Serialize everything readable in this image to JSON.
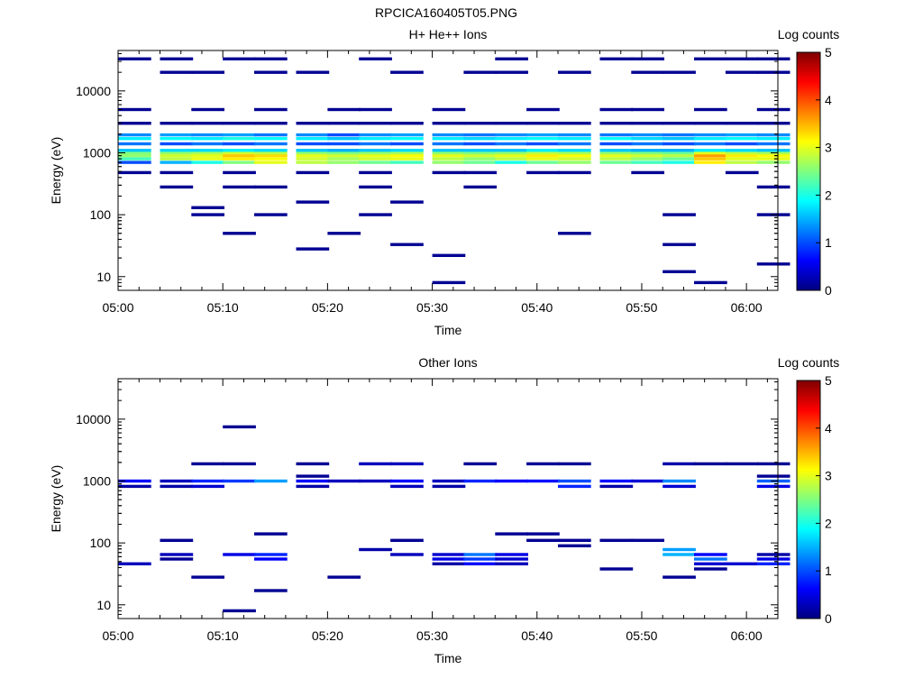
{
  "figure": {
    "title": "RPCICA160405T05.PNG"
  },
  "colorbar": {
    "colors": [
      "#00007f",
      "#0000ff",
      "#007fff",
      "#00ffff",
      "#7fff7f",
      "#ffff00",
      "#ff7f00",
      "#ff0000",
      "#7f0000"
    ],
    "ticks": [
      0,
      1,
      2,
      3,
      4,
      5
    ],
    "tick_labels": [
      "0",
      "1",
      "2",
      "3",
      "4",
      "5"
    ]
  },
  "chart_data": [
    {
      "type": "heatmap",
      "title": "H+ He++ Ions",
      "xlabel": "Time",
      "ylabel": "Energy (eV)",
      "colorbar_label": "Log counts",
      "y_scale": "log",
      "ylim": [
        6,
        45000
      ],
      "xlim": [
        "05:00",
        "06:03"
      ],
      "x_ticks": [
        "05:00",
        "05:10",
        "05:20",
        "05:30",
        "05:40",
        "05:50",
        "06:00"
      ],
      "y_ticks": [
        10,
        100,
        1000,
        10000
      ],
      "y_tick_labels": [
        "10",
        "100",
        "1000",
        "10000"
      ],
      "clim": [
        0,
        5
      ],
      "time_columns": [
        "05:00",
        "05:04",
        "05:07",
        "05:10",
        "05:13",
        "05:17",
        "05:20",
        "05:23",
        "05:26",
        "05:30",
        "05:33",
        "05:36",
        "05:39",
        "05:42",
        "05:46",
        "05:49",
        "05:52",
        "05:55",
        "05:58",
        "06:01"
      ],
      "column_width_minutes": 3.2,
      "bands": [
        {
          "e": 700,
          "values": [
            1.0,
            1.5,
            2.0,
            2.5,
            3.0,
            2.8,
            2.6,
            2.4,
            2.2,
            2.6,
            2.4,
            2.0,
            2.4,
            2.6,
            2.4,
            2.2,
            2.0,
            3.2,
            2.8,
            2.6
          ]
        },
        {
          "e": 800,
          "values": [
            2.2,
            2.8,
            3.0,
            3.2,
            3.1,
            2.9,
            2.7,
            2.9,
            3.0,
            2.8,
            2.6,
            2.8,
            3.0,
            2.9,
            2.8,
            2.6,
            2.4,
            3.4,
            3.0,
            3.0
          ]
        },
        {
          "e": 900,
          "values": [
            2.6,
            2.9,
            3.0,
            3.4,
            3.3,
            3.0,
            2.9,
            3.0,
            3.1,
            3.0,
            2.9,
            3.0,
            3.2,
            3.1,
            3.0,
            2.9,
            2.8,
            3.6,
            3.2,
            3.1
          ]
        },
        {
          "e": 1000,
          "values": [
            2.5,
            2.6,
            2.7,
            2.9,
            2.8,
            2.6,
            2.5,
            2.6,
            2.7,
            2.6,
            2.5,
            2.6,
            2.8,
            2.7,
            2.6,
            2.5,
            2.4,
            3.0,
            2.8,
            2.7
          ]
        },
        {
          "e": 1100,
          "values": [
            1.6,
            1.7,
            1.7,
            1.8,
            1.7,
            1.6,
            1.5,
            1.6,
            1.7,
            1.6,
            1.6,
            1.6,
            1.8,
            1.7,
            1.6,
            1.5,
            1.5,
            1.8,
            1.7,
            1.6
          ]
        },
        {
          "e": 1400,
          "values": [
            1.2,
            1.0,
            1.2,
            1.0,
            1.2,
            1.0,
            1.0,
            1.2,
            1.0,
            1.2,
            1.0,
            1.2,
            1.0,
            1.2,
            1.0,
            1.2,
            1.0,
            1.2,
            1.0,
            1.2
          ]
        },
        {
          "e": 1700,
          "values": [
            1.8,
            1.9,
            1.8,
            2.0,
            1.9,
            1.8,
            1.6,
            1.8,
            1.9,
            1.8,
            1.7,
            1.8,
            1.9,
            1.8,
            1.9,
            1.7,
            1.6,
            1.8,
            1.9,
            1.8
          ]
        },
        {
          "e": 1950,
          "values": [
            1.3,
            1.4,
            1.3,
            1.4,
            1.2,
            1.3,
            1.0,
            1.3,
            1.4,
            1.3,
            1.2,
            1.3,
            1.4,
            1.3,
            1.2,
            1.3,
            1.2,
            1.3,
            1.4,
            1.3
          ]
        },
        {
          "e": 16,
          "values": [
            null,
            null,
            null,
            null,
            null,
            null,
            null,
            null,
            null,
            null,
            null,
            null,
            null,
            null,
            null,
            null,
            null,
            null,
            null,
            0.1
          ]
        },
        {
          "e": 12,
          "values": [
            null,
            null,
            null,
            null,
            null,
            null,
            null,
            null,
            null,
            null,
            null,
            null,
            null,
            null,
            null,
            null,
            0.1,
            null,
            null,
            null
          ]
        },
        {
          "e": 8,
          "values": [
            null,
            null,
            null,
            null,
            null,
            null,
            null,
            null,
            null,
            0.1,
            null,
            null,
            null,
            null,
            null,
            null,
            null,
            0.1,
            null,
            null
          ]
        },
        {
          "e": 22,
          "values": [
            null,
            null,
            null,
            null,
            null,
            null,
            null,
            null,
            null,
            0.1,
            null,
            null,
            null,
            null,
            null,
            null,
            null,
            null,
            null,
            null
          ]
        },
        {
          "e": 28,
          "values": [
            null,
            null,
            null,
            null,
            null,
            0.1,
            null,
            null,
            null,
            null,
            null,
            null,
            null,
            null,
            null,
            null,
            null,
            null,
            null,
            null
          ]
        },
        {
          "e": 33,
          "values": [
            null,
            null,
            null,
            null,
            null,
            null,
            null,
            null,
            0.1,
            null,
            null,
            null,
            null,
            null,
            null,
            null,
            0.1,
            null,
            null,
            null
          ]
        },
        {
          "e": 160,
          "values": [
            null,
            null,
            null,
            null,
            null,
            0.1,
            null,
            null,
            0.1,
            null,
            null,
            null,
            null,
            null,
            null,
            null,
            null,
            null,
            null,
            null
          ]
        },
        {
          "e": 130,
          "values": [
            null,
            null,
            0.1,
            null,
            null,
            null,
            null,
            null,
            null,
            null,
            null,
            null,
            null,
            null,
            null,
            null,
            null,
            null,
            null,
            null
          ]
        },
        {
          "e": 3000,
          "values": [
            0.1,
            0.1,
            0.1,
            0.1,
            0.1,
            0.1,
            0.1,
            0.1,
            0.1,
            0.1,
            0.1,
            0.1,
            0.1,
            0.1,
            0.1,
            0.1,
            0.1,
            0.1,
            0.1,
            0.1
          ]
        },
        {
          "e": 5000,
          "values": [
            0.1,
            null,
            0.1,
            null,
            0.1,
            null,
            0.1,
            0.1,
            null,
            0.1,
            null,
            null,
            0.1,
            null,
            0.1,
            0.1,
            null,
            0.1,
            null,
            0.1
          ]
        },
        {
          "e": 20000,
          "values": [
            null,
            0.1,
            0.1,
            null,
            0.1,
            0.1,
            null,
            null,
            0.1,
            null,
            0.1,
            0.1,
            null,
            0.1,
            null,
            0.1,
            0.1,
            null,
            0.1,
            0.1
          ]
        },
        {
          "e": 33000,
          "values": [
            0.1,
            0.1,
            null,
            0.1,
            0.1,
            null,
            null,
            0.1,
            null,
            null,
            null,
            0.1,
            null,
            null,
            0.1,
            0.1,
            null,
            0.1,
            0.1,
            0.1
          ]
        },
        {
          "e": 480,
          "values": [
            0.1,
            0.1,
            null,
            0.1,
            null,
            0.1,
            null,
            0.1,
            null,
            0.1,
            0.1,
            null,
            0.1,
            0.1,
            null,
            0.1,
            null,
            null,
            0.1,
            null
          ]
        },
        {
          "e": 280,
          "values": [
            null,
            0.1,
            null,
            0.1,
            0.1,
            null,
            null,
            0.1,
            null,
            null,
            0.1,
            null,
            null,
            null,
            null,
            null,
            null,
            null,
            null,
            0.1
          ]
        },
        {
          "e": 50,
          "values": [
            null,
            null,
            null,
            0.1,
            null,
            null,
            0.1,
            null,
            null,
            null,
            null,
            null,
            null,
            0.1,
            null,
            null,
            null,
            null,
            null,
            null
          ]
        },
        {
          "e": 100,
          "values": [
            null,
            null,
            0.1,
            null,
            0.1,
            null,
            null,
            0.1,
            null,
            null,
            null,
            null,
            null,
            null,
            null,
            null,
            0.1,
            null,
            null,
            0.1
          ]
        }
      ]
    },
    {
      "type": "heatmap",
      "title": "Other Ions",
      "xlabel": "Time",
      "ylabel": "Energy (eV)",
      "colorbar_label": "Log counts",
      "y_scale": "log",
      "ylim": [
        6,
        45000
      ],
      "xlim": [
        "05:00",
        "06:03"
      ],
      "x_ticks": [
        "05:00",
        "05:10",
        "05:20",
        "05:30",
        "05:40",
        "05:50",
        "06:00"
      ],
      "y_ticks": [
        10,
        100,
        1000,
        10000
      ],
      "y_tick_labels": [
        "10",
        "100",
        "1000",
        "10000"
      ],
      "clim": [
        0,
        5
      ],
      "time_columns": [
        "05:00",
        "05:04",
        "05:07",
        "05:10",
        "05:13",
        "05:17",
        "05:20",
        "05:23",
        "05:26",
        "05:30",
        "05:33",
        "05:36",
        "05:39",
        "05:42",
        "05:46",
        "05:49",
        "05:52",
        "05:55",
        "05:58",
        "06:01"
      ],
      "column_width_minutes": 3.2,
      "bands": [
        {
          "e": 1000,
          "values": [
            0.6,
            0.3,
            0.8,
            0.9,
            1.4,
            0.6,
            0.3,
            0.3,
            0.6,
            0.3,
            0.8,
            0.6,
            0.7,
            1.0,
            0.7,
            0.4,
            1.3,
            null,
            null,
            1.1
          ]
        },
        {
          "e": 820,
          "values": [
            0.2,
            0.2,
            0.4,
            null,
            null,
            0.2,
            null,
            null,
            0.3,
            0.2,
            null,
            null,
            null,
            0.8,
            0.2,
            null,
            0.4,
            null,
            null,
            0.5
          ]
        },
        {
          "e": 1900,
          "values": [
            null,
            null,
            0.1,
            0.1,
            null,
            0.1,
            null,
            0.3,
            0.3,
            null,
            0.1,
            null,
            0.1,
            0.1,
            null,
            null,
            0.2,
            0.1,
            0.1,
            0.1
          ]
        },
        {
          "e": 1200,
          "values": [
            null,
            null,
            null,
            null,
            null,
            0.1,
            null,
            null,
            null,
            null,
            null,
            null,
            null,
            null,
            null,
            null,
            null,
            null,
            null,
            0.1
          ]
        },
        {
          "e": 7500,
          "values": [
            null,
            null,
            null,
            0.1,
            null,
            null,
            null,
            null,
            null,
            null,
            null,
            null,
            null,
            null,
            null,
            null,
            null,
            null,
            null,
            null
          ]
        },
        {
          "e": 46,
          "values": [
            0.3,
            null,
            null,
            null,
            null,
            null,
            null,
            null,
            null,
            0.2,
            0.6,
            0.3,
            null,
            null,
            null,
            null,
            null,
            0.4,
            0.4,
            0.8
          ]
        },
        {
          "e": 65,
          "values": [
            null,
            0.3,
            null,
            0.5,
            0.8,
            null,
            null,
            null,
            0.3,
            0.4,
            1.2,
            0.5,
            null,
            null,
            null,
            null,
            1.5,
            0.6,
            null,
            0.2
          ]
        },
        {
          "e": 55,
          "values": [
            null,
            0.1,
            null,
            null,
            0.6,
            null,
            null,
            null,
            null,
            0.5,
            0.9,
            0.4,
            null,
            null,
            null,
            null,
            null,
            1.2,
            null,
            0.5
          ]
        },
        {
          "e": 110,
          "values": [
            null,
            0.1,
            null,
            null,
            null,
            null,
            null,
            null,
            0.1,
            null,
            null,
            null,
            0.1,
            0.1,
            0.1,
            0.1,
            null,
            null,
            null,
            null
          ]
        },
        {
          "e": 140,
          "values": [
            null,
            null,
            null,
            null,
            0.1,
            null,
            null,
            null,
            null,
            null,
            null,
            0.1,
            0.1,
            null,
            null,
            null,
            null,
            null,
            null,
            null
          ]
        },
        {
          "e": 78,
          "values": [
            null,
            null,
            null,
            null,
            null,
            null,
            null,
            0.2,
            null,
            null,
            null,
            null,
            null,
            null,
            null,
            null,
            1.4,
            null,
            null,
            null
          ]
        },
        {
          "e": 90,
          "values": [
            null,
            null,
            null,
            null,
            null,
            null,
            null,
            null,
            null,
            null,
            null,
            null,
            null,
            0.1,
            null,
            null,
            null,
            null,
            null,
            null
          ]
        },
        {
          "e": 38,
          "values": [
            null,
            null,
            null,
            null,
            null,
            null,
            null,
            null,
            null,
            null,
            null,
            null,
            null,
            null,
            0.1,
            null,
            null,
            0.1,
            null,
            null
          ]
        },
        {
          "e": 28,
          "values": [
            null,
            null,
            0.1,
            null,
            null,
            null,
            0.1,
            null,
            null,
            null,
            null,
            null,
            null,
            null,
            null,
            null,
            0.1,
            null,
            null,
            null
          ]
        },
        {
          "e": 17,
          "values": [
            null,
            null,
            null,
            null,
            0.1,
            null,
            null,
            null,
            null,
            null,
            null,
            null,
            null,
            null,
            null,
            null,
            null,
            null,
            null,
            null
          ]
        },
        {
          "e": 8,
          "values": [
            null,
            null,
            null,
            0.1,
            null,
            null,
            null,
            null,
            null,
            null,
            null,
            null,
            null,
            null,
            null,
            null,
            null,
            null,
            null,
            null
          ]
        }
      ]
    }
  ]
}
